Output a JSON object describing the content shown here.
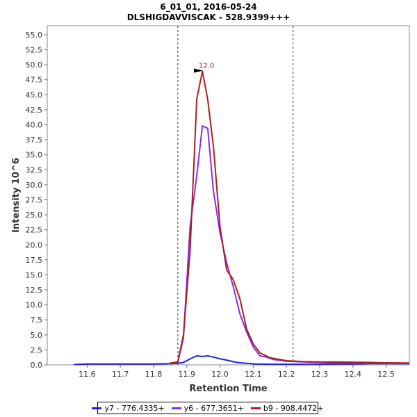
{
  "chart_data": {
    "type": "line",
    "title": "6_01_01, 2016-05-24",
    "subtitle": "DLSHIGDAVVISCAK - 528.9399+++",
    "xlabel": "Retention Time",
    "ylabel": "Intensity 10^6",
    "xlim": [
      11.48,
      12.57
    ],
    "ylim": [
      0,
      56.5
    ],
    "x_ticks": [
      "11.6",
      "11.7",
      "11.8",
      "11.9",
      "12.0",
      "12.1",
      "12.2",
      "12.3",
      "12.4",
      "12.5"
    ],
    "y_ticks": [
      "0.0",
      "2.5",
      "5.0",
      "7.5",
      "10.0",
      "12.5",
      "15.0",
      "17.5",
      "20.0",
      "22.5",
      "25.0",
      "27.5",
      "30.0",
      "32.5",
      "35.0",
      "37.5",
      "40.0",
      "42.5",
      "45.0",
      "47.5",
      "50.0",
      "52.5",
      "55.0"
    ],
    "boundaries": [
      11.873,
      12.22
    ],
    "peak_annotation": {
      "label": "12.0",
      "x": 11.955,
      "y": 48.9,
      "color": "#9b2323"
    },
    "legend_position": "bottom-center",
    "series": [
      {
        "name": "y7 - 776.4335+",
        "color": "#1f1fe6",
        "x": [
          11.56,
          11.6,
          11.65,
          11.7,
          11.75,
          11.8,
          11.85,
          11.873,
          11.89,
          11.91,
          11.93,
          11.947,
          11.963,
          11.98,
          12.0,
          12.02,
          12.05,
          12.08,
          12.11,
          12.15,
          12.2,
          12.25,
          12.3,
          12.35,
          12.4,
          12.45,
          12.5,
          12.57
        ],
        "values": [
          0.05,
          0.15,
          0.15,
          0.15,
          0.15,
          0.15,
          0.2,
          0.25,
          0.4,
          1.0,
          1.5,
          1.4,
          1.5,
          1.3,
          1.0,
          0.8,
          0.4,
          0.25,
          0.15,
          0.1,
          0.1,
          0.1,
          0.1,
          0.15,
          0.15,
          0.2,
          0.2,
          0.2
        ]
      },
      {
        "name": "y6 - 677.3651+",
        "color": "#8a2be2",
        "x": [
          11.85,
          11.873,
          11.89,
          11.91,
          11.93,
          11.947,
          11.963,
          11.98,
          12.0,
          12.02,
          12.04,
          12.06,
          12.08,
          12.1,
          12.12,
          12.14,
          12.16,
          12.2,
          12.25,
          12.3,
          12.35,
          12.4,
          12.45,
          12.5,
          12.57
        ],
        "values": [
          0.3,
          0.4,
          4.5,
          23.0,
          31.5,
          39.8,
          39.4,
          29.0,
          22.0,
          17.0,
          13.0,
          8.5,
          5.5,
          3.0,
          1.5,
          1.3,
          0.9,
          0.6,
          0.5,
          0.4,
          0.35,
          0.3,
          0.3,
          0.25,
          0.2
        ]
      },
      {
        "name": "b9 - 908.4472+",
        "color": "#a82020",
        "x": [
          11.85,
          11.873,
          11.89,
          11.91,
          11.93,
          11.947,
          11.963,
          11.98,
          12.0,
          12.02,
          12.04,
          12.06,
          12.08,
          12.1,
          12.12,
          12.15,
          12.2,
          12.25,
          12.3,
          12.35,
          12.4,
          12.45,
          12.5,
          12.57
        ],
        "values": [
          0.3,
          0.5,
          5.0,
          19.0,
          44.3,
          48.9,
          44.2,
          36.5,
          23.0,
          15.8,
          14.2,
          11.0,
          6.0,
          3.5,
          2.0,
          1.2,
          0.7,
          0.55,
          0.5,
          0.5,
          0.45,
          0.4,
          0.35,
          0.3
        ]
      }
    ]
  }
}
